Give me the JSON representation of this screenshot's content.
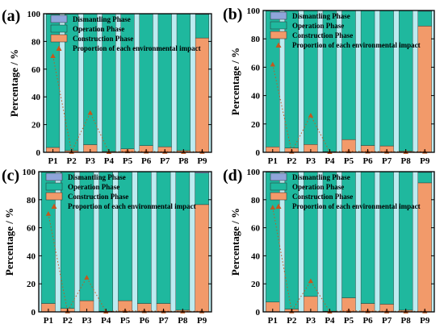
{
  "chart_data": [
    {
      "panel_label": "(a)",
      "type": "bar",
      "categories": [
        "P1",
        "P2",
        "P3",
        "P4",
        "P5",
        "P6",
        "P7",
        "P8",
        "P9"
      ],
      "ylabel": "Percentage / %",
      "ylim": [
        0,
        100
      ],
      "yticks": [
        0,
        20,
        40,
        60,
        80,
        100
      ],
      "stacked": true,
      "series": [
        {
          "name": "Construction Phase",
          "values": [
            3.5,
            1.2,
            5.5,
            0.6,
            2.5,
            4.8,
            4.0,
            1.2,
            82.5
          ]
        },
        {
          "name": "Operation Phase",
          "values": [
            96.2,
            98.6,
            94.3,
            99.3,
            97.3,
            95.0,
            95.8,
            98.6,
            17.0
          ]
        },
        {
          "name": "Dismantling Phase",
          "values": [
            0.3,
            0.2,
            0.2,
            0.1,
            0.2,
            0.2,
            0.2,
            0.2,
            0.5
          ]
        }
      ],
      "markers": {
        "name": "Proportion of each environmental impact",
        "values": [
          69.5,
          0.5,
          28.5,
          0.3,
          0.8,
          0.6,
          0.5,
          0.4,
          0.5
        ]
      },
      "legend_position": "top-left",
      "grid": false
    },
    {
      "panel_label": "(b)",
      "type": "bar",
      "categories": [
        "P1",
        "P2",
        "P3",
        "P4",
        "P5",
        "P6",
        "P7",
        "P8",
        "P9"
      ],
      "ylabel": "Percentage / %",
      "ylim": [
        0,
        100
      ],
      "yticks": [
        0,
        20,
        40,
        60,
        80,
        100
      ],
      "stacked": true,
      "series": [
        {
          "name": "Construction Phase",
          "values": [
            3.8,
            3.0,
            5.5,
            0.5,
            9.0,
            4.8,
            4.5,
            0.8,
            89.0
          ]
        },
        {
          "name": "Operation Phase",
          "values": [
            95.9,
            96.8,
            94.3,
            99.4,
            90.8,
            95.0,
            95.3,
            99.0,
            10.5
          ]
        },
        {
          "name": "Dismantling Phase",
          "values": [
            0.3,
            0.2,
            0.2,
            0.1,
            0.2,
            0.2,
            0.2,
            0.2,
            0.5
          ]
        }
      ],
      "markers": {
        "name": "Proportion of each environmental impact",
        "values": [
          62.0,
          0.5,
          26.0,
          0.3,
          0.8,
          0.6,
          0.5,
          0.4,
          0.5
        ]
      },
      "legend_position": "top-left",
      "grid": false
    },
    {
      "panel_label": "(c)",
      "type": "bar",
      "categories": [
        "P1",
        "P2",
        "P3",
        "P4",
        "P5",
        "P6",
        "P7",
        "P8",
        "P9"
      ],
      "ylabel": "Percentage / %",
      "ylim": [
        0,
        100
      ],
      "yticks": [
        0,
        20,
        40,
        60,
        80,
        100
      ],
      "stacked": true,
      "series": [
        {
          "name": "Construction Phase",
          "values": [
            6.0,
            2.5,
            8.0,
            0.5,
            8.0,
            6.0,
            6.0,
            1.2,
            76.5
          ]
        },
        {
          "name": "Operation Phase",
          "values": [
            93.7,
            97.3,
            91.8,
            99.4,
            91.8,
            93.8,
            93.8,
            98.6,
            22.5
          ]
        },
        {
          "name": "Dismantling Phase",
          "values": [
            0.3,
            0.2,
            0.2,
            0.1,
            0.2,
            0.2,
            0.2,
            0.2,
            1.0
          ]
        }
      ],
      "markers": {
        "name": "Proportion of each environmental impact",
        "values": [
          70.0,
          0.5,
          24.5,
          0.3,
          0.8,
          0.6,
          0.5,
          0.4,
          0.5
        ]
      },
      "legend_position": "top-left",
      "grid": false
    },
    {
      "panel_label": "(d)",
      "type": "bar",
      "categories": [
        "P1",
        "P2",
        "P3",
        "P4",
        "P5",
        "P6",
        "P7",
        "P8",
        "P9"
      ],
      "ylabel": "Percentage / %",
      "ylim": [
        0,
        100
      ],
      "yticks": [
        0,
        20,
        40,
        60,
        80,
        100
      ],
      "stacked": true,
      "series": [
        {
          "name": "Construction Phase",
          "values": [
            7.0,
            2.0,
            11.0,
            0.5,
            10.0,
            6.0,
            5.5,
            1.2,
            92.0
          ]
        },
        {
          "name": "Operation Phase",
          "values": [
            92.7,
            97.8,
            88.8,
            99.4,
            89.8,
            93.8,
            94.3,
            98.6,
            7.5
          ]
        },
        {
          "name": "Dismantling Phase",
          "values": [
            0.3,
            0.2,
            0.2,
            0.1,
            0.2,
            0.2,
            0.2,
            0.2,
            0.5
          ]
        }
      ],
      "markers": {
        "name": "Proportion of each environmental impact",
        "values": [
          74.5,
          0.5,
          22.0,
          0.3,
          0.8,
          0.6,
          0.5,
          0.4,
          0.5
        ]
      },
      "legend_position": "top-left",
      "grid": false
    }
  ],
  "colors": {
    "construction": "#f29a6a",
    "operation": "#1fb89e",
    "dismantling": "#8fa5da",
    "gap": "#bdebf0",
    "marker": "#c4571d",
    "axis": "#000000"
  },
  "legend_labels": {
    "dismantling": "Dismantling Phase",
    "operation": "Operation Phase",
    "construction": "Construction Phase",
    "marker": "Proportion of each environmental impact"
  }
}
